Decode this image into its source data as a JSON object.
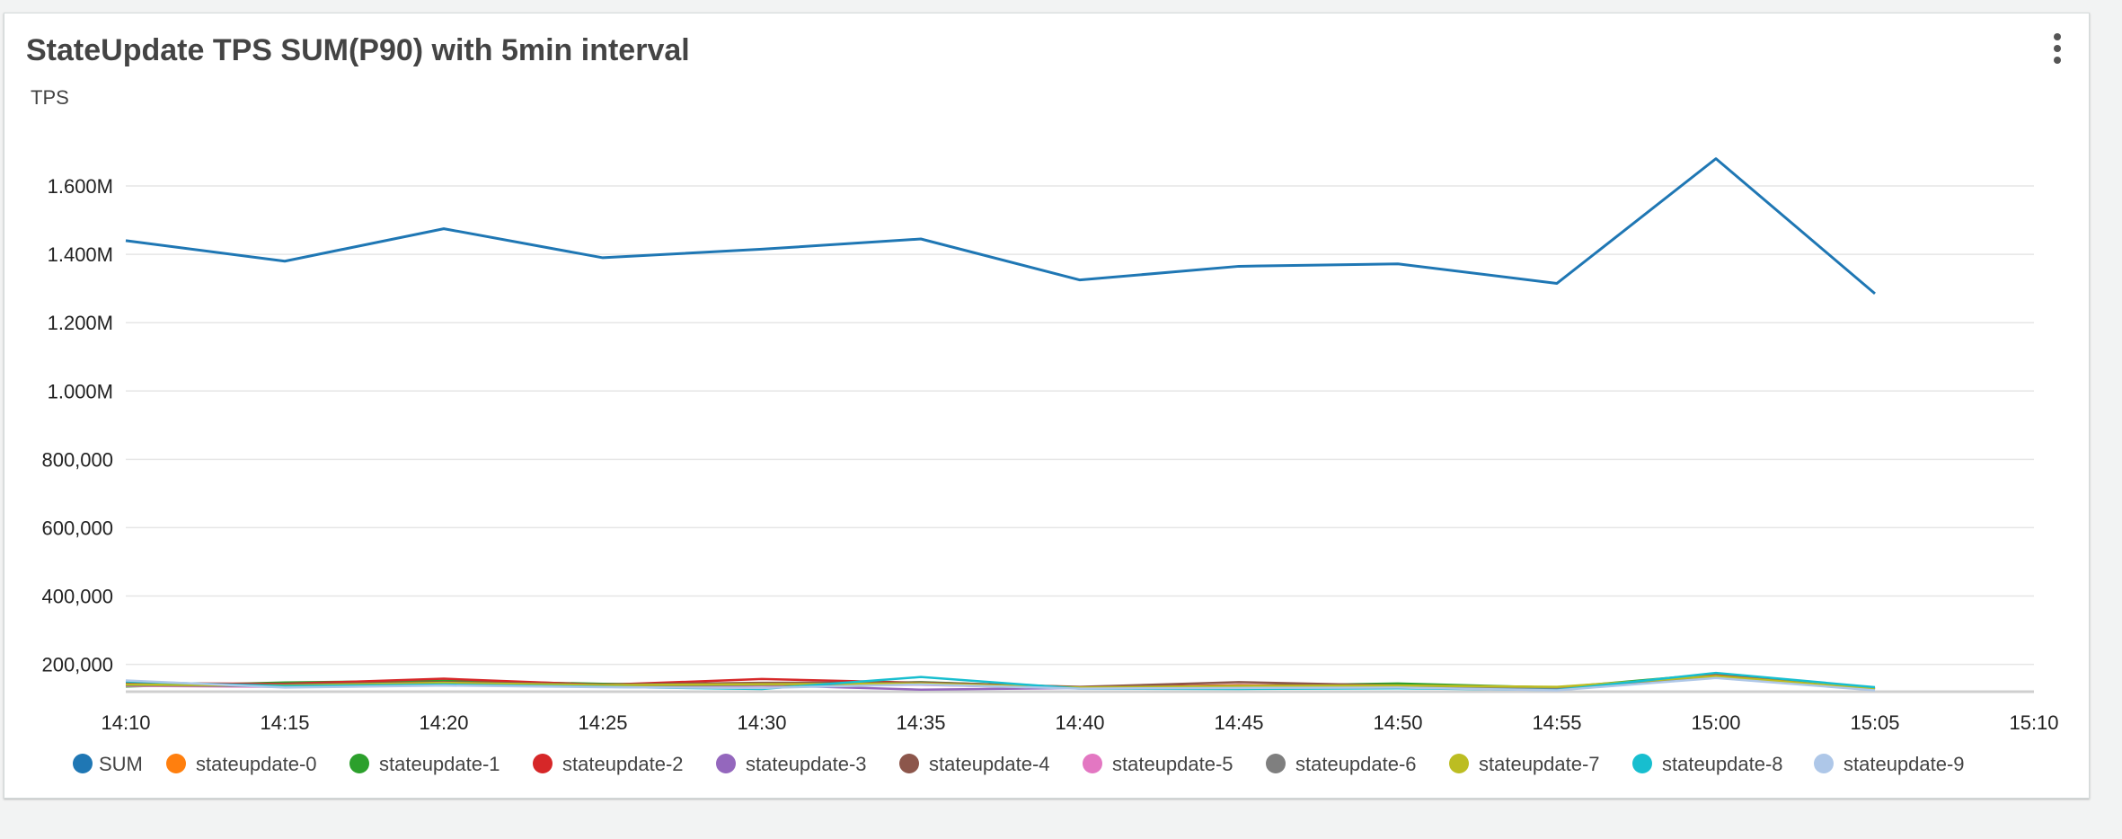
{
  "widget": {
    "title": "StateUpdate TPS SUM(P90) with 5min interval",
    "menu_icon": "more-vertical-icon"
  },
  "chart_data": {
    "type": "line",
    "title": "StateUpdate TPS SUM(P90) with 5min interval",
    "xlabel": "",
    "ylabel": "TPS",
    "ylim": [
      120000,
      1750000
    ],
    "y_ticks": [
      200000,
      400000,
      600000,
      800000,
      1000000,
      1200000,
      1400000,
      1600000
    ],
    "y_tick_labels": [
      "200,000",
      "400,000",
      "600,000",
      "800,000",
      "1.000M",
      "1.200M",
      "1.400M",
      "1.600M"
    ],
    "x_tick_labels": [
      "14:10",
      "14:15",
      "14:20",
      "14:25",
      "14:30",
      "14:35",
      "14:40",
      "14:45",
      "14:50",
      "14:55",
      "15:00",
      "15:05",
      "15:10"
    ],
    "x": [
      "14:10",
      "14:15",
      "14:20",
      "14:25",
      "14:30",
      "14:35",
      "14:40",
      "14:45",
      "14:50",
      "14:55",
      "15:00",
      "15:05"
    ],
    "grid": true,
    "legend_position": "bottom",
    "series": [
      {
        "name": "SUM",
        "color": "#1f77b4",
        "values": [
          1440000,
          1380000,
          1475000,
          1390000,
          1415000,
          1445000,
          1325000,
          1365000,
          1372000,
          1315000,
          1680000,
          1285000
        ]
      },
      {
        "name": "stateupdate-0",
        "color": "#ff7f0e",
        "values": [
          140000,
          137000,
          146000,
          138000,
          141000,
          145000,
          133000,
          136000,
          137000,
          131000,
          166000,
          128000
        ]
      },
      {
        "name": "stateupdate-1",
        "color": "#2ca02c",
        "values": [
          135000,
          147000,
          152000,
          143000,
          140000,
          148000,
          133000,
          137000,
          144000,
          132000,
          172000,
          130000
        ]
      },
      {
        "name": "stateupdate-2",
        "color": "#d62728",
        "values": [
          145000,
          143000,
          158000,
          140000,
          157000,
          146000,
          132000,
          139000,
          136000,
          129000,
          168000,
          127000
        ]
      },
      {
        "name": "stateupdate-3",
        "color": "#9467bd",
        "values": [
          138000,
          135000,
          144000,
          136000,
          139000,
          126000,
          131000,
          134000,
          135000,
          127000,
          163000,
          126000
        ]
      },
      {
        "name": "stateupdate-4",
        "color": "#8c564b",
        "values": [
          143000,
          141000,
          148000,
          141000,
          146000,
          147000,
          134000,
          148000,
          138000,
          133000,
          165000,
          129000
        ]
      },
      {
        "name": "stateupdate-5",
        "color": "#e377c2",
        "values": [
          137000,
          134000,
          142000,
          135000,
          138000,
          140000,
          130000,
          133000,
          134000,
          126000,
          162000,
          125000
        ]
      },
      {
        "name": "stateupdate-6",
        "color": "#7f7f7f",
        "values": [
          139000,
          136000,
          145000,
          137000,
          140000,
          142000,
          131000,
          135000,
          136000,
          128000,
          164000,
          127000
        ]
      },
      {
        "name": "stateupdate-7",
        "color": "#bcbd22",
        "values": [
          141000,
          138000,
          146000,
          139000,
          142000,
          144000,
          132000,
          137000,
          138000,
          134000,
          166000,
          128000
        ]
      },
      {
        "name": "stateupdate-8",
        "color": "#17becf",
        "values": [
          150000,
          136000,
          141000,
          134000,
          128000,
          163000,
          129000,
          128000,
          130000,
          125000,
          175000,
          133000
        ]
      },
      {
        "name": "stateupdate-9",
        "color": "#aec7e8",
        "values": [
          153000,
          132000,
          138000,
          133000,
          131000,
          141000,
          129000,
          131000,
          132000,
          124000,
          160000,
          124000
        ]
      }
    ]
  }
}
